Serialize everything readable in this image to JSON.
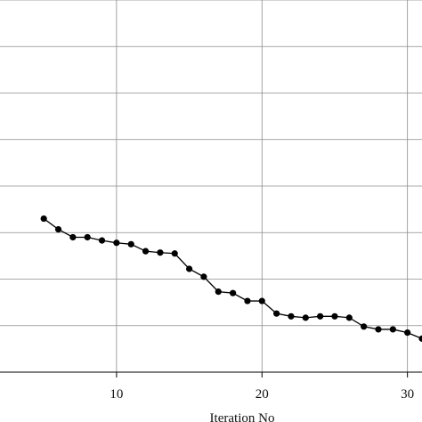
{
  "chart_data": {
    "type": "line",
    "title": "",
    "xlabel": "Iteration No",
    "ylabel": "",
    "xlim": [
      1.5,
      31
    ],
    "ylim": [
      0,
      8
    ],
    "grid": true,
    "x_ticks": [
      10,
      20,
      30
    ],
    "x_tick_labels": [
      "10",
      "20",
      "30"
    ],
    "y_gridlines": [
      0,
      1,
      2,
      3,
      4,
      5,
      6,
      7,
      8
    ],
    "series": [
      {
        "name": "",
        "color": "#000000",
        "marker": "circle",
        "x": [
          5,
          6,
          7,
          8,
          9,
          10,
          11,
          12,
          13,
          14,
          15,
          16,
          17,
          18,
          19,
          20,
          21,
          22,
          23,
          24,
          25,
          26,
          27,
          28,
          29,
          30,
          31
        ],
        "y": [
          3.3,
          3.07,
          2.9,
          2.9,
          2.83,
          2.78,
          2.75,
          2.6,
          2.57,
          2.55,
          2.22,
          2.05,
          1.73,
          1.7,
          1.53,
          1.53,
          1.26,
          1.2,
          1.17,
          1.2,
          1.2,
          1.17,
          0.98,
          0.92,
          0.92,
          0.85,
          0.72
        ]
      }
    ]
  }
}
